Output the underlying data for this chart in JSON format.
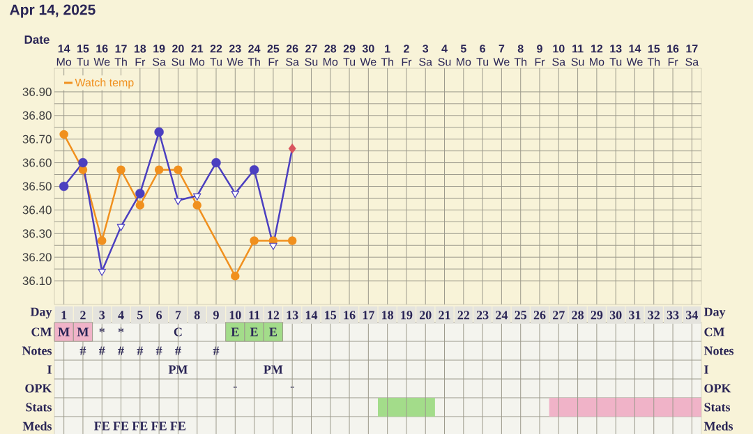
{
  "chart_data": [
    {
      "type": "line",
      "title": "Apr 14, 2025",
      "xlabel": "Date",
      "categories": [
        "**14** Mo",
        "**15** Tu",
        "**16** We",
        "**17** Th",
        "**18** Fr",
        "**19** Sa",
        "**20** Su",
        "**21** Mo",
        "**22** Tu",
        "**23** We",
        "**24** Th",
        "**25** Fr",
        "**26** Sa",
        "**27** Su",
        "**28** Mo",
        "**29** Tu",
        "**30** We",
        "**1** Th",
        "**2** Fr",
        "**3** Sa",
        "**4** Su",
        "**5** Mo",
        "**6** Tu",
        "**7** We",
        "**8** Th",
        "**9** Fr",
        "**10** Sa",
        "**11** Su",
        "**12** Mo",
        "**13** Tu",
        "**14** We",
        "**15** Th",
        "**16** Fr",
        "**17** Sa"
      ],
      "series": [
        {
          "name": "Watch temp",
          "type": "line",
          "marker": "circle",
          "color": "#f0901e",
          "values": [
            36.72,
            36.57,
            36.27,
            36.57,
            36.42,
            36.57,
            36.57,
            36.42,
            null,
            36.12,
            36.27,
            36.27,
            36.27,
            null,
            null,
            null,
            null,
            null,
            null,
            null,
            null,
            null,
            null,
            null,
            null,
            null,
            null,
            null,
            null,
            null,
            null,
            null,
            null,
            null
          ]
        },
        {
          "type": "line",
          "marker": "none",
          "color": "#4b3fc0",
          "values": [
            36.5,
            36.6,
            36.14,
            36.33,
            36.47,
            36.73,
            36.44,
            36.46,
            36.6,
            36.47,
            36.57,
            36.25,
            36.66,
            null,
            null,
            null,
            null,
            null,
            null,
            null,
            null,
            null,
            null,
            null,
            null,
            null,
            null,
            null,
            null,
            null,
            null,
            null,
            null,
            null
          ]
        },
        {
          "type": "scatter",
          "marker": "circle",
          "color": "#4b3fc0",
          "values": [
            36.5,
            36.6,
            null,
            null,
            36.47,
            36.73,
            null,
            null,
            36.6,
            null,
            36.57,
            null,
            null,
            null,
            null,
            null,
            null,
            null,
            null,
            null,
            null,
            null,
            null,
            null,
            null,
            null,
            null,
            null,
            null,
            null,
            null,
            null,
            null,
            null
          ]
        },
        {
          "type": "scatter",
          "marker": "triangle",
          "color": "#4b3fc0",
          "values": [
            null,
            null,
            36.14,
            36.33,
            null,
            null,
            36.44,
            36.46,
            null,
            36.47,
            null,
            36.25,
            null,
            null,
            null,
            null,
            null,
            null,
            null,
            null,
            null,
            null,
            null,
            null,
            null,
            null,
            null,
            null,
            null,
            null,
            null,
            null,
            null,
            null
          ]
        },
        {
          "type": "scatter",
          "marker": "diamond",
          "color": "#d9545e",
          "values": [
            null,
            null,
            null,
            null,
            null,
            null,
            null,
            null,
            null,
            null,
            null,
            null,
            36.66,
            null,
            null,
            null,
            null,
            null,
            null,
            null,
            null,
            null,
            null,
            null,
            null,
            null,
            null,
            null,
            null,
            null,
            null,
            null,
            null,
            null
          ]
        }
      ],
      "ylim": [
        36.0,
        37.0
      ],
      "yticks": [
        {
          "value": 36.1,
          "label": "36.10"
        },
        {
          "value": 36.2,
          "label": "36.20"
        },
        {
          "value": 36.3,
          "label": "36.30"
        },
        {
          "value": 36.4,
          "label": "36.40"
        },
        {
          "value": 36.5,
          "label": "36.50"
        },
        {
          "value": 36.6,
          "label": "36.60"
        },
        {
          "value": 36.7,
          "label": "36.70"
        },
        {
          "value": 36.8,
          "label": "36.80"
        },
        {
          "value": 36.9,
          "label": "36.90"
        }
      ],
      "grid": true,
      "legend": "top left"
    },
    {
      "type": "heatmap",
      "xlabel": "Day",
      "grid": true,
      "bands": [
        {
          "axis": "x",
          "from": "18",
          "to": "20",
          "color": "#a3dc8a"
        },
        {
          "axis": "x",
          "from": "27",
          "to": "34",
          "color": "#f0b3c8"
        }
      ],
      "categories": [
        "1",
        "2",
        "3",
        "4",
        "5",
        "6",
        "7",
        "8",
        "9",
        "10",
        "11",
        "12",
        "13",
        "14",
        "15",
        "16",
        "17",
        "18",
        "19",
        "20",
        "21",
        "22",
        "23",
        "24",
        "25",
        "26",
        "27",
        "28",
        "29",
        "30",
        "31",
        "32",
        "33",
        "34"
      ],
      "y_categories": [
        "CM",
        "Notes",
        "I",
        "OPK",
        "Stats",
        "Meds"
      ],
      "y2_categories": [
        "CM",
        "Notes",
        "I",
        "OPK",
        "Stats",
        "Meds"
      ],
      "cells": [
        [
          null,
          null,
          null,
          null,
          null,
          null,
          null,
          null,
          null,
          null,
          null,
          null,
          null,
          null,
          null,
          null,
          null,
          null,
          null,
          null,
          null,
          null,
          null,
          null,
          null,
          null,
          null,
          null,
          null,
          null,
          null,
          null,
          null,
          null
        ],
        [
          null,
          null,
          null,
          null,
          null,
          null,
          null,
          null,
          null,
          null,
          null,
          null,
          null,
          null,
          null,
          null,
          null,
          null,
          null,
          null,
          null,
          null,
          null,
          null,
          null,
          null,
          null,
          null,
          null,
          null,
          null,
          null,
          null,
          null
        ],
        [
          null,
          null,
          null,
          null,
          null,
          null,
          null,
          null,
          null,
          null,
          null,
          null,
          null,
          null,
          null,
          null,
          null,
          null,
          null,
          null,
          null,
          null,
          null,
          null,
          null,
          null,
          null,
          null,
          null,
          null,
          null,
          null,
          null,
          null
        ],
        [
          null,
          null,
          null,
          null,
          null,
          null,
          null,
          null,
          null,
          null,
          null,
          null,
          null,
          null,
          null,
          null,
          null,
          null,
          null,
          null,
          null,
          null,
          null,
          null,
          null,
          null,
          null,
          null,
          null,
          null,
          null,
          null,
          null,
          null
        ],
        [
          null,
          null,
          null,
          null,
          null,
          null,
          null,
          null,
          null,
          null,
          null,
          null,
          null,
          null,
          null,
          null,
          null,
          null,
          null,
          null,
          null,
          null,
          null,
          null,
          null,
          null,
          null,
          null,
          null,
          null,
          null,
          null,
          null,
          null
        ],
        [
          null,
          null,
          null,
          null,
          null,
          null,
          null,
          null,
          null,
          null,
          null,
          null,
          null,
          null,
          null,
          null,
          null,
          null,
          null,
          null,
          null,
          null,
          null,
          null,
          null,
          null,
          null,
          null,
          null,
          null,
          null,
          null,
          null,
          null
        ]
      ],
      "cell_labels": [
        [
          "M",
          "M",
          "*",
          "*",
          null,
          null,
          "C",
          null,
          null,
          "E",
          "E",
          "E",
          null,
          null,
          null,
          null,
          null,
          null,
          null,
          null,
          null,
          null,
          null,
          null,
          null,
          null,
          null,
          null,
          null,
          null,
          null,
          null,
          null,
          null
        ],
        [
          null,
          "#",
          "#",
          "#",
          "#",
          "#",
          "#",
          null,
          "#",
          null,
          null,
          null,
          null,
          null,
          null,
          null,
          null,
          null,
          null,
          null,
          null,
          null,
          null,
          null,
          null,
          null,
          null,
          null,
          null,
          null,
          null,
          null,
          null,
          null
        ],
        [
          null,
          null,
          null,
          null,
          null,
          null,
          "PM",
          null,
          null,
          null,
          null,
          "PM",
          null,
          null,
          null,
          null,
          null,
          null,
          null,
          null,
          null,
          null,
          null,
          null,
          null,
          null,
          null,
          null,
          null,
          null,
          null,
          null,
          null,
          null
        ],
        [
          null,
          null,
          null,
          null,
          null,
          null,
          null,
          null,
          null,
          "-",
          null,
          null,
          "-",
          null,
          null,
          null,
          null,
          null,
          null,
          null,
          null,
          null,
          null,
          null,
          null,
          null,
          null,
          null,
          null,
          null,
          null,
          null,
          null,
          null
        ],
        [
          null,
          null,
          null,
          null,
          null,
          null,
          null,
          null,
          null,
          null,
          null,
          null,
          null,
          null,
          null,
          null,
          null,
          null,
          null,
          null,
          null,
          null,
          null,
          null,
          null,
          null,
          null,
          null,
          null,
          null,
          null,
          null,
          null,
          null
        ],
        [
          null,
          null,
          "FE",
          "FE",
          "FE",
          "FE",
          "FE",
          null,
          null,
          null,
          null,
          null,
          null,
          null,
          null,
          null,
          null,
          null,
          null,
          null,
          null,
          null,
          null,
          null,
          null,
          null,
          null,
          null,
          null,
          null,
          null,
          null,
          null,
          null
        ]
      ],
      "colors": [
        [
          "#f0b3c8",
          "#f0b3c8",
          null,
          null,
          null,
          null,
          null,
          null,
          null,
          "#a3dc8a",
          "#a3dc8a",
          "#a3dc8a",
          null,
          null,
          null,
          null,
          null,
          null,
          null,
          null,
          null,
          null,
          null,
          null,
          null,
          null,
          null,
          null,
          null,
          null,
          null,
          null,
          null,
          null
        ],
        [
          null,
          null,
          null,
          null,
          null,
          null,
          null,
          null,
          null,
          null,
          null,
          null,
          null,
          null,
          null,
          null,
          null,
          null,
          null,
          null,
          null,
          null,
          null,
          null,
          null,
          null,
          null,
          null,
          null,
          null,
          null,
          null,
          null,
          null
        ],
        [
          null,
          null,
          null,
          null,
          null,
          null,
          null,
          null,
          null,
          null,
          null,
          null,
          null,
          null,
          null,
          null,
          null,
          null,
          null,
          null,
          null,
          null,
          null,
          null,
          null,
          null,
          null,
          null,
          null,
          null,
          null,
          null,
          null,
          null
        ],
        [
          null,
          null,
          null,
          null,
          null,
          null,
          null,
          null,
          null,
          null,
          null,
          null,
          null,
          null,
          null,
          null,
          null,
          null,
          null,
          null,
          null,
          null,
          null,
          null,
          null,
          null,
          null,
          null,
          null,
          null,
          null,
          null,
          null,
          null
        ],
        [
          null,
          null,
          null,
          null,
          null,
          null,
          null,
          null,
          null,
          null,
          null,
          null,
          null,
          null,
          null,
          null,
          null,
          null,
          null,
          null,
          null,
          null,
          null,
          null,
          null,
          null,
          null,
          null,
          null,
          null,
          null,
          null,
          null,
          null
        ],
        [
          null,
          null,
          null,
          null,
          null,
          null,
          null,
          null,
          null,
          null,
          null,
          null,
          null,
          null,
          null,
          null,
          null,
          null,
          null,
          null,
          null,
          null,
          null,
          null,
          null,
          null,
          null,
          null,
          null,
          null,
          null,
          null,
          null,
          null
        ]
      ]
    }
  ]
}
